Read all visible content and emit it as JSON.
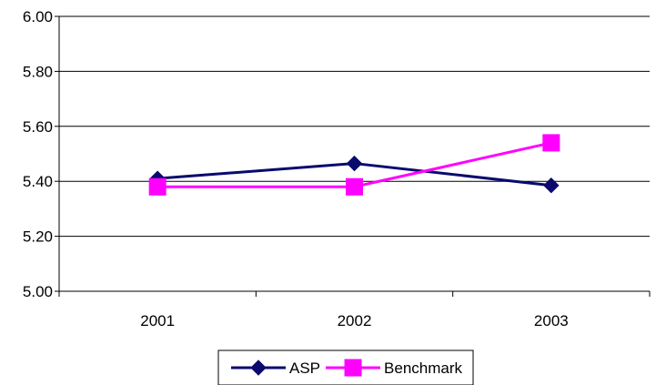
{
  "chart_data": {
    "type": "line",
    "categories": [
      "2001",
      "2002",
      "2003"
    ],
    "series": [
      {
        "name": "ASP",
        "values": [
          5.41,
          5.465,
          5.385
        ],
        "color": "#0a0a6e",
        "marker": "diamond"
      },
      {
        "name": "Benchmark",
        "values": [
          5.38,
          5.38,
          5.54
        ],
        "color": "#ff00ff",
        "marker": "square"
      }
    ],
    "ylim": [
      5.0,
      6.0
    ],
    "yticks": [
      "5.00",
      "5.20",
      "5.40",
      "5.60",
      "5.80",
      "6.00"
    ],
    "grid": true,
    "legend_position": "bottom"
  }
}
